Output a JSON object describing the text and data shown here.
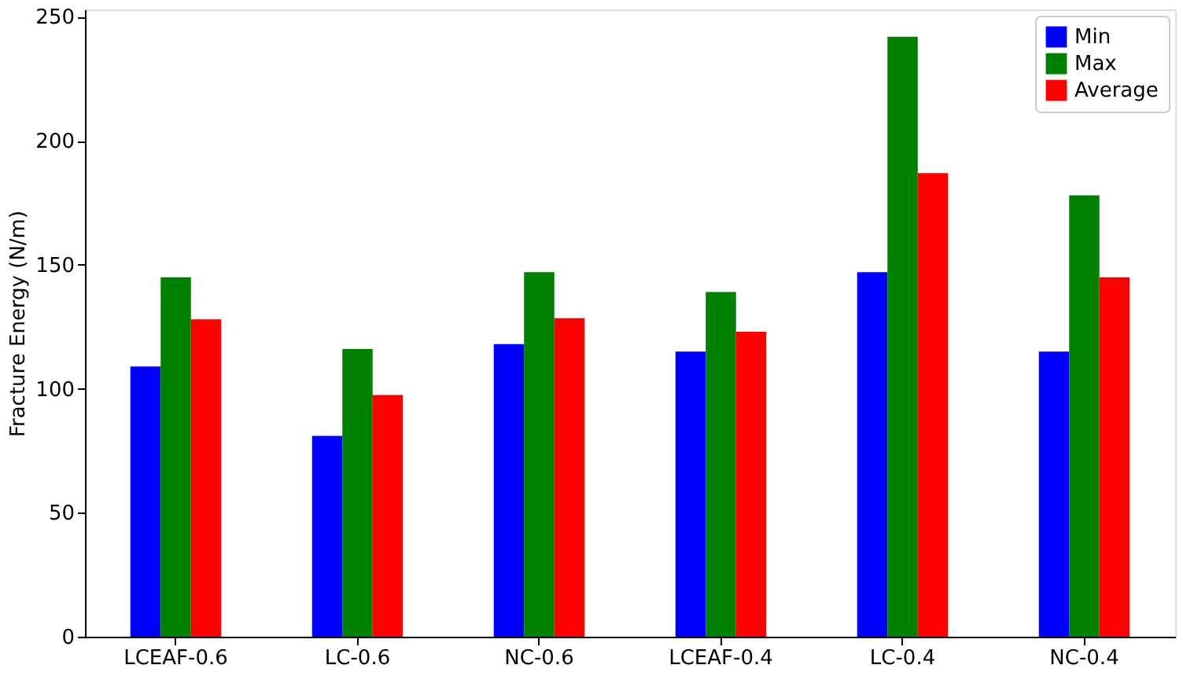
{
  "chart_data": {
    "type": "bar",
    "ylabel": "Fracture Energy (N/m)",
    "categories": [
      "LCEAF-0.6",
      "LC-0.6",
      "NC-0.6",
      "LCEAF-0.4",
      "LC-0.4",
      "NC-0.4"
    ],
    "series": [
      {
        "name": "Min",
        "color": "#0000ff",
        "values": [
          109,
          81,
          118,
          115,
          147,
          115
        ]
      },
      {
        "name": "Max",
        "color": "#008000",
        "values": [
          145,
          116,
          147,
          139,
          242,
          178
        ]
      },
      {
        "name": "Average",
        "color": "#ff0000",
        "values": [
          128,
          97.5,
          128.5,
          123,
          187,
          145
        ]
      }
    ],
    "ylim": [
      0,
      253
    ],
    "yticks": [
      0,
      50,
      100,
      150,
      200,
      250
    ],
    "grid": false,
    "legend": "top right"
  }
}
